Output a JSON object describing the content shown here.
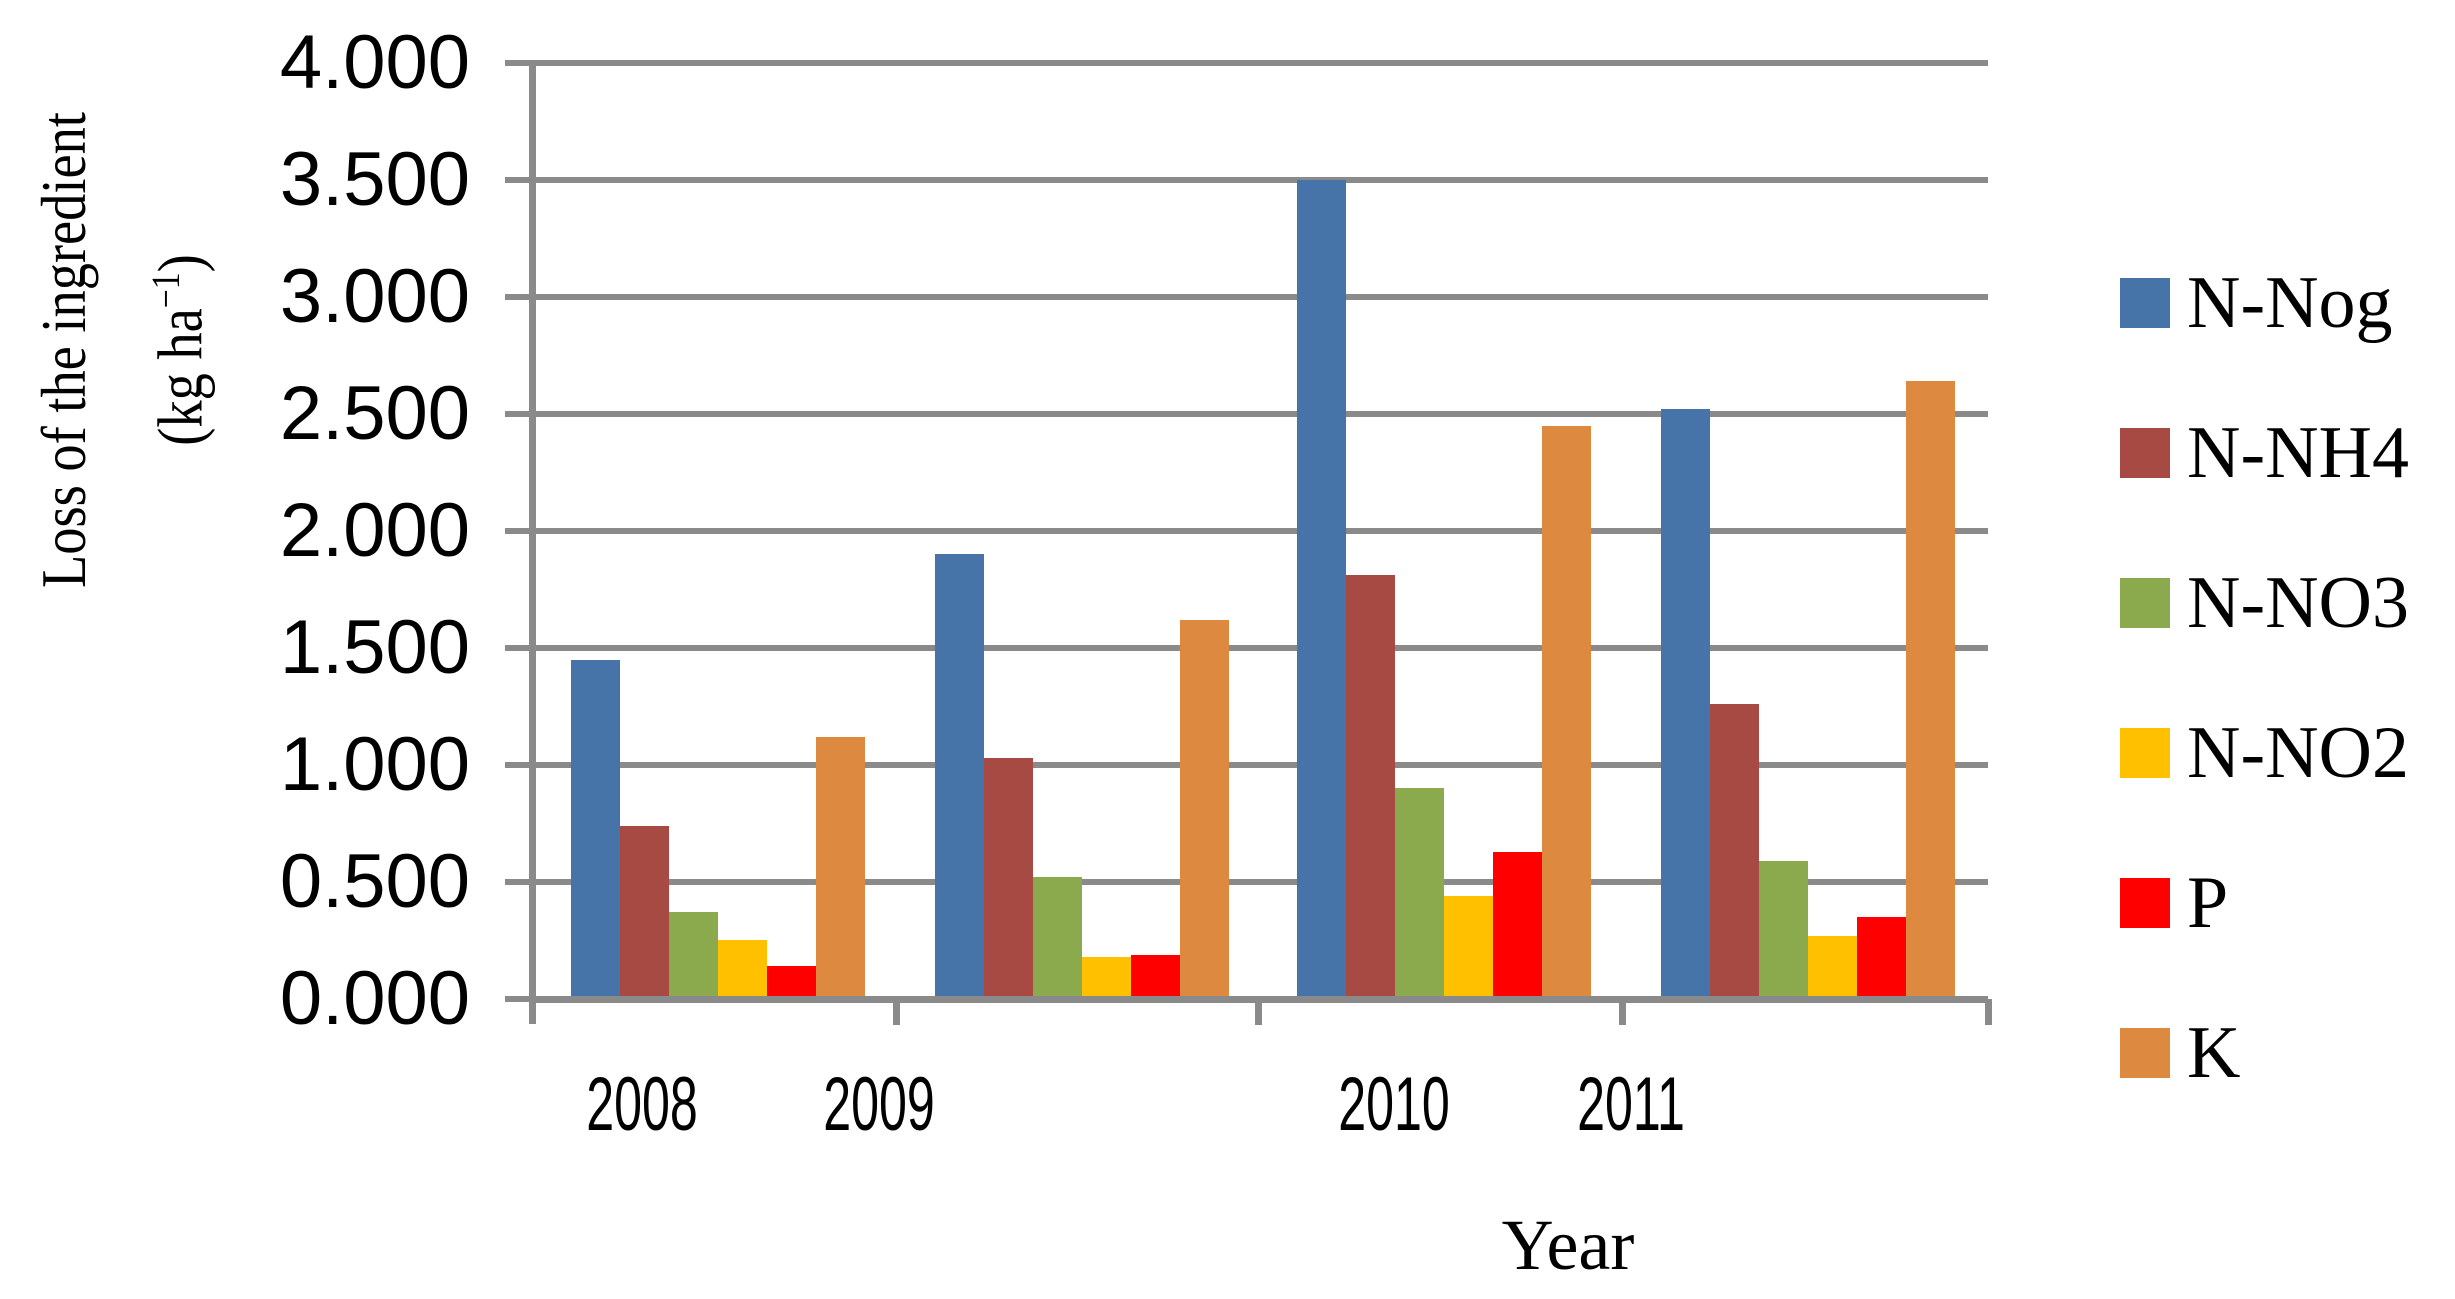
{
  "y_axis": {
    "title_line1": "Loss of the ingredient",
    "unit_open": "(kg ha",
    "unit_sup": "−1",
    "unit_close": ")",
    "tick_labels": [
      "4.000",
      "3.500",
      "3.000",
      "2.500",
      "2.000",
      "1.500",
      "1.000",
      "0.500",
      "0.000"
    ],
    "min": 0,
    "max": 4,
    "step": 0.5
  },
  "x_axis": {
    "title": "Year",
    "categories": [
      "2008",
      "2009",
      "2010",
      "2011"
    ]
  },
  "legend": {
    "position": "right",
    "items": [
      {
        "label": "N-Nog",
        "color": "#4673A8"
      },
      {
        "label": "N-NH4",
        "color": "#A84A44"
      },
      {
        "label": "N-NO3",
        "color": "#8BA94D"
      },
      {
        "label": "N-NO2",
        "color": "#FFC000"
      },
      {
        "label": "P",
        "color": "#FF0000"
      },
      {
        "label": "K",
        "color": "#DD8A40"
      }
    ]
  },
  "colors": {
    "grid": "#8A8A8A",
    "background": "#FFFFFF"
  },
  "chart_data": {
    "type": "bar",
    "categories": [
      "2008",
      "2009",
      "2010",
      "2011"
    ],
    "series": [
      {
        "name": "N-Nog",
        "color": "#4673A8",
        "values": [
          1.45,
          1.9,
          3.5,
          2.52
        ]
      },
      {
        "name": "N-NH4",
        "color": "#A84A44",
        "values": [
          0.74,
          1.03,
          1.81,
          1.26
        ]
      },
      {
        "name": "N-NO3",
        "color": "#8BA94D",
        "values": [
          0.37,
          0.52,
          0.9,
          0.59
        ]
      },
      {
        "name": "N-NO2",
        "color": "#FFC000",
        "values": [
          0.25,
          0.18,
          0.44,
          0.27
        ]
      },
      {
        "name": "P",
        "color": "#FF0000",
        "values": [
          0.14,
          0.19,
          0.63,
          0.35
        ]
      },
      {
        "name": "K",
        "color": "#DD8A40",
        "values": [
          1.12,
          1.62,
          2.45,
          2.64
        ]
      }
    ],
    "title": "",
    "xlabel": "Year",
    "ylabel": "Loss of the ingredient (kg ha⁻¹)",
    "ylim": [
      0,
      4
    ],
    "grid": true,
    "legend_position": "right"
  }
}
